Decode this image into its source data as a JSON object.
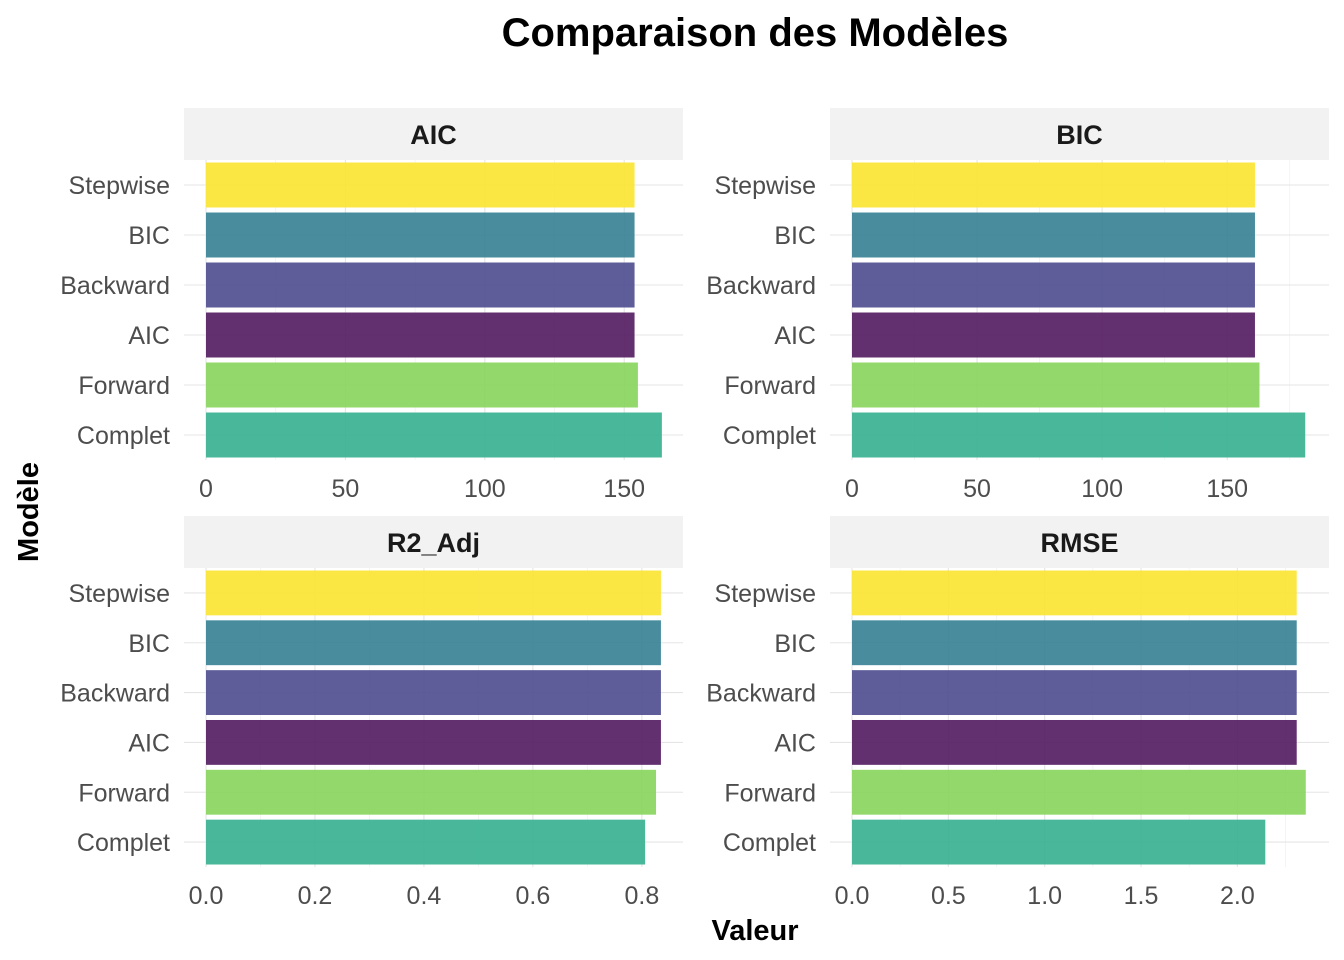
{
  "title": "Comparaison des Modèles",
  "xlabel": "Valeur",
  "ylabel": "Modèle",
  "colors": {
    "Complet": "#35b08f",
    "Forward": "#86d45a",
    "AIC": "#52195f",
    "Backward": "#4c4b8e",
    "BIC": "#347f93",
    "Stepwise": "#fbe430"
  },
  "chart_data": [
    {
      "type": "bar",
      "title": "AIC",
      "categories": [
        "Complet",
        "Forward",
        "AIC",
        "Backward",
        "BIC",
        "Stepwise"
      ],
      "values": [
        163.5,
        154.9,
        153.7,
        153.7,
        153.7,
        153.7
      ],
      "xlim": [
        0,
        170
      ],
      "ticks": [
        0,
        50,
        100,
        150
      ],
      "tick_labels": [
        "0",
        "50",
        "100",
        "150"
      ],
      "minor_ticks": [
        25,
        75,
        125
      ]
    },
    {
      "type": "bar",
      "title": "BIC",
      "categories": [
        "Complet",
        "Forward",
        "AIC",
        "Backward",
        "BIC",
        "Stepwise"
      ],
      "values": [
        181.2,
        162.9,
        161.1,
        161.1,
        161.1,
        161.1
      ],
      "xlim": [
        0,
        189.5
      ],
      "ticks": [
        0,
        50,
        100,
        150
      ],
      "tick_labels": [
        "0",
        "50",
        "100",
        "150"
      ],
      "minor_ticks": [
        25,
        75,
        125,
        175
      ]
    },
    {
      "type": "bar",
      "title": "R2_Adj",
      "categories": [
        "Complet",
        "Forward",
        "AIC",
        "Backward",
        "BIC",
        "Stepwise"
      ],
      "values": [
        0.806,
        0.826,
        0.835,
        0.835,
        0.835,
        0.835
      ],
      "xlim": [
        0,
        0.87
      ],
      "ticks": [
        0,
        0.2,
        0.4,
        0.6,
        0.8
      ],
      "tick_labels": [
        "0.0",
        "0.2",
        "0.4",
        "0.6",
        "0.8"
      ],
      "minor_ticks": [
        0.1,
        0.3,
        0.5,
        0.7
      ]
    },
    {
      "type": "bar",
      "title": "RMSE",
      "categories": [
        "Complet",
        "Forward",
        "AIC",
        "Backward",
        "BIC",
        "Stepwise"
      ],
      "values": [
        2.145,
        2.355,
        2.308,
        2.308,
        2.308,
        2.308
      ],
      "xlim": [
        0,
        2.46
      ],
      "ticks": [
        0,
        0.5,
        1.0,
        1.5,
        2.0
      ],
      "tick_labels": [
        "0.0",
        "0.5",
        "1.0",
        "1.5",
        "2.0"
      ],
      "minor_ticks": [
        0.25,
        0.75,
        1.25,
        1.75,
        2.25
      ]
    }
  ]
}
